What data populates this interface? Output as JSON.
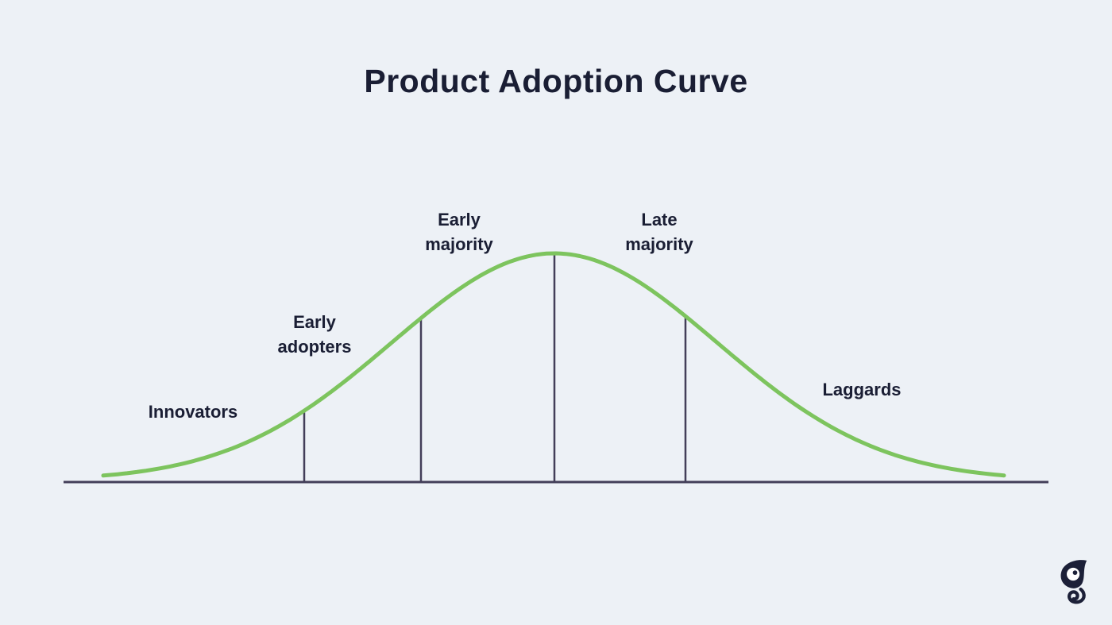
{
  "title": "Product Adoption Curve",
  "diagram": {
    "segments": [
      {
        "label": "Innovators"
      },
      {
        "label": "Early adopters"
      },
      {
        "label": "Early majority"
      },
      {
        "label": "Late majority"
      },
      {
        "label": "Laggards"
      }
    ],
    "colors": {
      "background": "#edf1f6",
      "curve": "#7dc45e",
      "axis": "#433e59",
      "text": "#1a1e34",
      "logo": "#1c2038"
    }
  },
  "logo": {
    "name": "chameleon-logo"
  }
}
